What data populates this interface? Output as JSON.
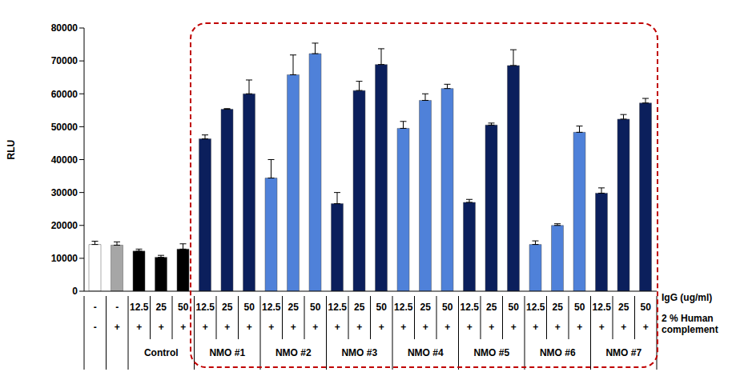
{
  "chart_data": {
    "type": "bar",
    "y_label": "RLU",
    "x_label": "IgG (ug/ml)",
    "complement_label": "2 % Human complement",
    "categories": [
      "-",
      "-",
      "12.5",
      "25",
      "50",
      "12.5",
      "25",
      "50",
      "12.5",
      "25",
      "50",
      "12.5",
      "25",
      "50",
      "12.5",
      "25",
      "50",
      "12.5",
      "25",
      "50",
      "12.5",
      "25",
      "50",
      "12.5",
      "25",
      "50"
    ],
    "complement": [
      "-",
      "+",
      "+",
      "+",
      "+",
      "+",
      "+",
      "+",
      "+",
      "+",
      "+",
      "+",
      "+",
      "+",
      "+",
      "+",
      "+",
      "+",
      "+",
      "+",
      "+",
      "+",
      "+",
      "+",
      "+",
      "+"
    ],
    "groups": [
      null,
      null,
      "Control",
      "Control",
      "Control",
      "NMO #1",
      "NMO #1",
      "NMO #1",
      "NMO #2",
      "NMO #2",
      "NMO #2",
      "NMO #3",
      "NMO #3",
      "NMO #3",
      "NMO #4",
      "NMO #4",
      "NMO #4",
      "NMO #5",
      "NMO #5",
      "NMO #5",
      "NMO #6",
      "NMO #6",
      "NMO #6",
      "NMO #7",
      "NMO #7",
      "NMO #7"
    ],
    "values": [
      14200,
      14000,
      12200,
      10300,
      12800,
      46300,
      55300,
      60000,
      34400,
      65800,
      72200,
      26600,
      61000,
      68900,
      49500,
      58000,
      61600,
      27000,
      50500,
      68600,
      14200,
      20000,
      48300,
      29800,
      52300,
      57200
    ],
    "errors": [
      1000,
      1000,
      600,
      600,
      1600,
      1200,
      200,
      4200,
      5600,
      6000,
      3200,
      3400,
      2800,
      4800,
      2100,
      2000,
      1300,
      900,
      600,
      4800,
      1100,
      500,
      1900,
      1600,
      1400,
      1400
    ],
    "colors": [
      "#ffffff",
      "#a6a6a6",
      "#000000",
      "#000000",
      "#000000",
      "#0b1f5c",
      "#0b1f5c",
      "#0b1f5c",
      "#4f81d9",
      "#4f81d9",
      "#4f81d9",
      "#0b1f5c",
      "#0b1f5c",
      "#0b1f5c",
      "#4f81d9",
      "#4f81d9",
      "#4f81d9",
      "#0b1f5c",
      "#0b1f5c",
      "#0b1f5c",
      "#4f81d9",
      "#4f81d9",
      "#4f81d9",
      "#0b1f5c",
      "#0b1f5c",
      "#0b1f5c"
    ],
    "ylim": [
      0,
      80000
    ],
    "yticks": [
      0,
      10000,
      20000,
      30000,
      40000,
      50000,
      60000,
      70000,
      80000
    ],
    "grid": false
  }
}
